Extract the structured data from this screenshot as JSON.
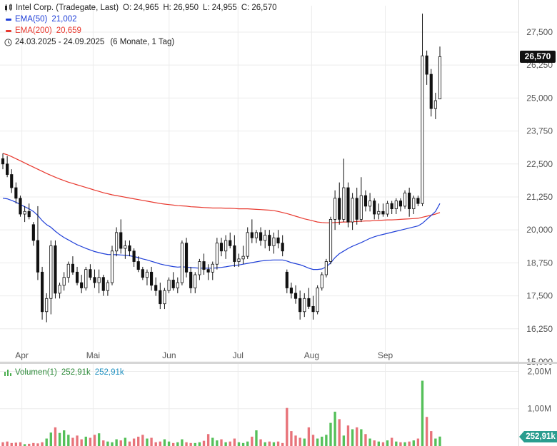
{
  "header": {
    "title": "Intel Corp. (Tradegate, Last)",
    "open_label": "O:",
    "open": "24,965",
    "high_label": "H:",
    "high": "26,950",
    "low_label": "L:",
    "low": "24,955",
    "close_label": "C:",
    "close": "26,570"
  },
  "indicators": [
    {
      "label": "EMA(50)",
      "value": "21,002",
      "color": "#1f3fd8"
    },
    {
      "label": "EMA(200)",
      "value": "20,659",
      "color": "#e8392f"
    }
  ],
  "period": {
    "range": "24.03.2025 - 24.09.2025",
    "detail": "(6 Monate, 1 Tag)"
  },
  "last_price_tag": "26,570",
  "volume_panel": {
    "label": "Volumen(1)",
    "value1": "252,91k",
    "value2": "252,91k",
    "last_tag": "252,91k"
  },
  "colors": {
    "up": "#ffffff",
    "down": "#111111",
    "wick": "#111111",
    "ema50": "#1f3fd8",
    "ema200": "#e8392f",
    "vol_up": "#55c05a",
    "vol_down": "#e8737a",
    "grid": "#ececec"
  },
  "chart_data": [
    {
      "type": "candlestick",
      "title": "Intel Corp. (Tradegate, Last)",
      "ylim": [
        15.0,
        28.5
      ],
      "y_ticks": [
        "15,000",
        "16,250",
        "17,500",
        "18,750",
        "20,000",
        "21,250",
        "22,500",
        "23,750",
        "25,000",
        "26,250",
        "27,500"
      ],
      "y_tick_values": [
        15.0,
        16.25,
        17.5,
        18.75,
        20.0,
        21.25,
        22.5,
        23.75,
        25.0,
        26.25,
        27.5
      ],
      "x_ticks": [
        {
          "label": "Apr",
          "date": "2025-04-01"
        },
        {
          "label": "Mai",
          "date": "2025-05-01"
        },
        {
          "label": "Jun",
          "date": "2025-06-02"
        },
        {
          "label": "Jul",
          "date": "2025-07-01"
        },
        {
          "label": "Aug",
          "date": "2025-08-01"
        },
        {
          "label": "Sep",
          "date": "2025-09-01"
        }
      ],
      "date_start": "2025-03-24",
      "date_end": "2025-09-24",
      "ohlc": [
        [
          22.7,
          22.9,
          22.3,
          22.5
        ],
        [
          22.5,
          22.8,
          22.0,
          22.1
        ],
        [
          22.1,
          22.3,
          21.4,
          21.6
        ],
        [
          21.6,
          21.8,
          21.0,
          21.2
        ],
        [
          21.2,
          21.3,
          20.5,
          20.6
        ],
        [
          20.6,
          20.9,
          20.3,
          20.7
        ],
        [
          20.7,
          21.0,
          20.4,
          20.5
        ],
        [
          20.2,
          20.3,
          19.4,
          19.6
        ],
        [
          19.6,
          20.9,
          18.1,
          18.4
        ],
        [
          18.4,
          18.6,
          16.6,
          16.9
        ],
        [
          16.9,
          17.6,
          16.5,
          17.4
        ],
        [
          17.4,
          19.6,
          16.8,
          19.4
        ],
        [
          19.4,
          19.6,
          17.4,
          17.6
        ],
        [
          17.6,
          18.0,
          17.4,
          17.9
        ],
        [
          17.9,
          18.4,
          17.7,
          18.2
        ],
        [
          18.2,
          18.8,
          18.0,
          18.7
        ],
        [
          18.7,
          19.0,
          18.3,
          18.4
        ],
        [
          18.4,
          18.6,
          17.9,
          18.0
        ],
        [
          18.0,
          18.3,
          17.6,
          17.8
        ],
        [
          17.8,
          18.6,
          17.7,
          18.5
        ],
        [
          18.5,
          18.7,
          18.1,
          18.2
        ],
        [
          18.2,
          18.5,
          17.8,
          18.0
        ],
        [
          18.0,
          18.5,
          17.6,
          18.2
        ],
        [
          18.2,
          18.3,
          17.5,
          17.7
        ],
        [
          17.7,
          18.1,
          17.5,
          18.0
        ],
        [
          18.0,
          19.4,
          17.9,
          19.2
        ],
        [
          19.2,
          20.1,
          19.0,
          19.9
        ],
        [
          19.9,
          20.4,
          19.1,
          19.3
        ],
        [
          19.3,
          19.6,
          18.9,
          19.4
        ],
        [
          19.4,
          19.6,
          19.0,
          19.2
        ],
        [
          19.2,
          19.3,
          18.6,
          18.8
        ],
        [
          18.8,
          19.0,
          18.4,
          18.5
        ],
        [
          18.5,
          18.6,
          18.1,
          18.2
        ],
        [
          18.2,
          18.5,
          17.9,
          18.4
        ],
        [
          18.4,
          18.6,
          17.7,
          17.9
        ],
        [
          17.9,
          18.2,
          17.5,
          17.7
        ],
        [
          17.7,
          18.0,
          17.0,
          17.2
        ],
        [
          17.2,
          17.8,
          17.0,
          17.7
        ],
        [
          17.7,
          18.2,
          17.6,
          18.1
        ],
        [
          18.1,
          18.4,
          17.7,
          17.8
        ],
        [
          17.8,
          18.2,
          17.6,
          18.0
        ],
        [
          18.0,
          19.6,
          17.9,
          19.5
        ],
        [
          19.5,
          19.7,
          18.2,
          18.4
        ],
        [
          18.4,
          18.6,
          17.6,
          17.8
        ],
        [
          17.8,
          18.4,
          17.6,
          18.3
        ],
        [
          18.3,
          18.9,
          18.1,
          18.8
        ],
        [
          18.8,
          19.1,
          18.3,
          18.5
        ],
        [
          18.5,
          18.7,
          18.1,
          18.4
        ],
        [
          18.4,
          18.8,
          18.1,
          18.7
        ],
        [
          18.7,
          19.7,
          18.5,
          19.5
        ],
        [
          19.5,
          19.7,
          19.0,
          19.2
        ],
        [
          19.2,
          19.8,
          18.9,
          19.6
        ],
        [
          19.6,
          19.9,
          19.3,
          19.4
        ],
        [
          19.4,
          19.8,
          18.6,
          18.8
        ],
        [
          18.8,
          19.1,
          18.6,
          18.9
        ],
        [
          18.9,
          19.4,
          18.7,
          19.0
        ],
        [
          19.0,
          20.1,
          18.9,
          19.9
        ],
        [
          19.9,
          20.4,
          19.5,
          19.7
        ],
        [
          19.7,
          20.0,
          19.5,
          19.9
        ],
        [
          19.9,
          20.1,
          19.4,
          19.6
        ],
        [
          19.6,
          20.0,
          19.3,
          19.8
        ],
        [
          19.8,
          20.0,
          19.2,
          19.4
        ],
        [
          19.4,
          19.9,
          19.1,
          19.7
        ],
        [
          19.7,
          20.0,
          19.3,
          19.5
        ],
        [
          19.5,
          19.8,
          19.0,
          19.2
        ],
        [
          18.4,
          18.5,
          17.6,
          17.8
        ],
        [
          17.8,
          18.0,
          17.4,
          17.6
        ],
        [
          17.6,
          17.9,
          17.2,
          17.4
        ],
        [
          17.4,
          17.7,
          16.6,
          16.9
        ],
        [
          16.9,
          17.6,
          16.7,
          17.4
        ],
        [
          17.4,
          17.8,
          17.0,
          17.1
        ],
        [
          17.1,
          17.5,
          16.6,
          16.9
        ],
        [
          16.9,
          17.9,
          16.8,
          17.8
        ],
        [
          17.8,
          18.4,
          17.7,
          18.3
        ],
        [
          18.3,
          18.9,
          18.2,
          18.8
        ],
        [
          18.8,
          20.5,
          18.7,
          20.4
        ],
        [
          20.4,
          21.5,
          20.0,
          21.2
        ],
        [
          21.2,
          21.8,
          20.2,
          20.4
        ],
        [
          20.4,
          22.7,
          20.3,
          21.6
        ],
        [
          21.6,
          21.8,
          20.1,
          20.3
        ],
        [
          20.3,
          21.4,
          20.0,
          21.2
        ],
        [
          21.2,
          21.6,
          20.2,
          20.4
        ],
        [
          20.4,
          22.0,
          20.3,
          21.3
        ],
        [
          21.3,
          21.5,
          20.7,
          20.9
        ],
        [
          20.9,
          21.4,
          20.7,
          21.1
        ],
        [
          21.1,
          21.2,
          20.4,
          20.6
        ],
        [
          20.6,
          21.0,
          20.4,
          20.7
        ],
        [
          20.7,
          21.0,
          20.5,
          20.6
        ],
        [
          20.6,
          21.1,
          20.5,
          21.0
        ],
        [
          21.0,
          21.1,
          20.6,
          20.8
        ],
        [
          20.8,
          21.2,
          20.6,
          21.1
        ],
        [
          21.1,
          21.2,
          20.7,
          20.9
        ],
        [
          20.9,
          21.5,
          20.8,
          21.4
        ],
        [
          21.4,
          21.6,
          20.5,
          20.8
        ],
        [
          20.8,
          21.3,
          20.6,
          21.2
        ],
        [
          21.2,
          21.3,
          20.9,
          21.0
        ],
        [
          21.0,
          28.2,
          20.9,
          26.6
        ],
        [
          26.6,
          26.8,
          25.5,
          25.9
        ],
        [
          25.9,
          26.1,
          24.3,
          24.6
        ],
        [
          24.6,
          25.2,
          24.2,
          24.9
        ],
        [
          24.965,
          26.95,
          24.955,
          26.57
        ]
      ],
      "ema50": [
        21.2,
        21.18,
        21.12,
        21.05,
        20.96,
        20.88,
        20.8,
        20.7,
        20.55,
        20.35,
        20.2,
        20.1,
        19.95,
        19.82,
        19.71,
        19.62,
        19.53,
        19.44,
        19.37,
        19.3,
        19.24,
        19.18,
        19.14,
        19.1,
        19.07,
        19.06,
        19.06,
        19.05,
        19.04,
        19.02,
        18.99,
        18.95,
        18.9,
        18.86,
        18.81,
        18.76,
        18.71,
        18.67,
        18.64,
        18.61,
        18.59,
        18.6,
        18.59,
        18.57,
        18.56,
        18.55,
        18.55,
        18.55,
        18.55,
        18.56,
        18.58,
        18.6,
        18.63,
        18.65,
        18.67,
        18.7,
        18.73,
        18.76,
        18.79,
        18.82,
        18.84,
        18.85,
        18.86,
        18.86,
        18.86,
        18.82,
        18.76,
        18.72,
        18.68,
        18.62,
        18.55,
        18.5,
        18.5,
        18.52,
        18.6,
        18.75,
        18.95,
        19.1,
        19.2,
        19.3,
        19.38,
        19.45,
        19.52,
        19.6,
        19.68,
        19.74,
        19.79,
        19.83,
        19.87,
        19.91,
        19.95,
        19.99,
        20.03,
        20.07,
        20.11,
        20.15,
        20.25,
        20.4,
        20.55,
        20.7,
        21.0
      ],
      "ema200": [
        22.9,
        22.85,
        22.78,
        22.7,
        22.62,
        22.54,
        22.46,
        22.38,
        22.3,
        22.22,
        22.14,
        22.07,
        22.0,
        21.93,
        21.87,
        21.81,
        21.76,
        21.71,
        21.66,
        21.61,
        21.56,
        21.51,
        21.46,
        21.41,
        21.37,
        21.33,
        21.3,
        21.27,
        21.24,
        21.21,
        21.18,
        21.15,
        21.12,
        21.09,
        21.06,
        21.03,
        21.0,
        20.98,
        20.96,
        20.94,
        20.92,
        20.91,
        20.9,
        20.88,
        20.87,
        20.86,
        20.85,
        20.84,
        20.83,
        20.83,
        20.83,
        20.82,
        20.82,
        20.81,
        20.8,
        20.8,
        20.8,
        20.79,
        20.78,
        20.77,
        20.76,
        20.75,
        20.73,
        20.7,
        20.66,
        20.62,
        20.57,
        20.52,
        20.47,
        20.42,
        20.38,
        20.34,
        20.3,
        20.28,
        20.27,
        20.27,
        20.28,
        20.29,
        20.3,
        20.3,
        20.31,
        20.32,
        20.33,
        20.34,
        20.34,
        20.35,
        20.36,
        20.37,
        20.38,
        20.38,
        20.39,
        20.4,
        20.41,
        20.42,
        20.43,
        20.44,
        20.48,
        20.52,
        20.56,
        20.6,
        20.66
      ],
      "volume_ticks": [
        "1,00M",
        "2,00M"
      ],
      "volume_tick_values": [
        1.0,
        2.0
      ],
      "volume_unit": "M",
      "volume": [
        0.1,
        0.12,
        0.08,
        0.09,
        0.1,
        0.05,
        0.06,
        0.08,
        0.07,
        0.1,
        0.2,
        0.36,
        0.5,
        0.35,
        0.42,
        0.3,
        0.22,
        0.28,
        0.18,
        0.25,
        0.22,
        0.3,
        0.34,
        0.15,
        0.12,
        0.1,
        0.18,
        0.15,
        0.22,
        0.12,
        0.2,
        0.25,
        0.3,
        0.2,
        0.22,
        0.1,
        0.12,
        0.18,
        0.12,
        0.08,
        0.1,
        0.18,
        0.1,
        0.08,
        0.08,
        0.1,
        0.14,
        0.32,
        0.22,
        0.15,
        0.18,
        0.1,
        0.12,
        0.2,
        0.1,
        0.08,
        0.12,
        0.25,
        0.42,
        0.18,
        0.1,
        0.12,
        0.1,
        0.12,
        0.08,
        1.02,
        0.4,
        0.28,
        0.22,
        0.2,
        0.5,
        0.3,
        0.2,
        0.25,
        0.3,
        0.62,
        0.92,
        0.72,
        0.28,
        0.55,
        0.45,
        0.5,
        0.45,
        0.32,
        0.2,
        0.15,
        0.12,
        0.1,
        0.15,
        0.22,
        0.12,
        0.1,
        0.1,
        0.12,
        0.15,
        0.2,
        1.75,
        0.78,
        0.4,
        0.2,
        0.253
      ]
    }
  ]
}
